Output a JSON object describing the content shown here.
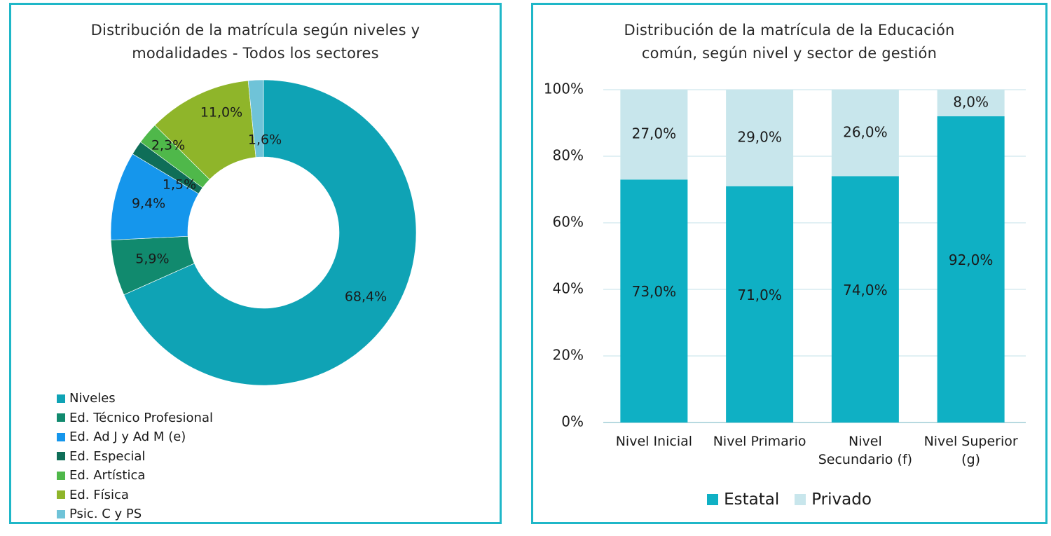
{
  "chart_data": [
    {
      "type": "pie",
      "title_lines": [
        "Distribución de la matrícula según niveles y",
        "modalidades - Todos los sectores"
      ],
      "donut": true,
      "slices": [
        {
          "name": "Niveles",
          "value": 68.4,
          "label": "68,4%",
          "color": "#0fa3b5"
        },
        {
          "name": "Ed. Técnico Profesional",
          "value": 5.9,
          "label": "5,9%",
          "color": "#118a6e"
        },
        {
          "name": "Ed. Ad J y Ad M (e)",
          "value": 9.4,
          "label": "9,4%",
          "color": "#1596ec"
        },
        {
          "name": "Ed. Especial",
          "value": 1.5,
          "label": "1,5%",
          "color": "#0f6e58"
        },
        {
          "name": "Ed. Artística",
          "value": 2.3,
          "label": "2,3%",
          "color": "#4fb84a"
        },
        {
          "name": "Ed. Física",
          "value": 11.0,
          "label": "11,0%",
          "color": "#8fb52a"
        },
        {
          "name": "Psic. C y PS",
          "value": 1.6,
          "label": "1,6%",
          "color": "#6fc3d8"
        }
      ],
      "legend_position": "bottom-left"
    },
    {
      "type": "bar",
      "stacked": true,
      "title_lines": [
        "Distribución de la matrícula de la Educación",
        "común, según nivel y sector de gestión"
      ],
      "categories": [
        [
          "Nivel Inicial"
        ],
        [
          "Nivel Primario"
        ],
        [
          "Nivel",
          "Secundario (f)"
        ],
        [
          "Nivel Superior",
          "(g)"
        ]
      ],
      "series": [
        {
          "name": "Estatal",
          "values": [
            73.0,
            71.0,
            74.0,
            92.0
          ],
          "labels": [
            "73,0%",
            "71,0%",
            "74,0%",
            "92,0%"
          ],
          "color": "#0fb0c4"
        },
        {
          "name": "Privado",
          "values": [
            27.0,
            29.0,
            26.0,
            8.0
          ],
          "labels": [
            "27,0%",
            "29,0%",
            "26,0%",
            "8,0%"
          ],
          "color": "#c8e6ec"
        }
      ],
      "ylim": [
        0,
        100
      ],
      "yticks": [
        0,
        20,
        40,
        60,
        80,
        100
      ],
      "ytick_labels": [
        "0%",
        "20%",
        "40%",
        "60%",
        "80%",
        "100%"
      ],
      "grid": true,
      "legend_position": "bottom"
    }
  ]
}
